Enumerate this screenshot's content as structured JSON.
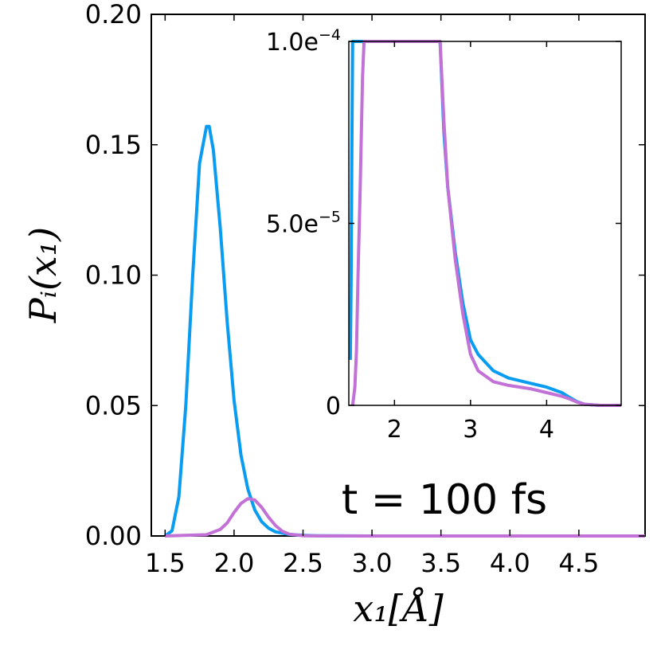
{
  "chart_data": [
    {
      "type": "line",
      "xlabel": "x₁[Å]",
      "ylabel": "Pᵢ(x₁)",
      "xlim": [
        1.4,
        4.98
      ],
      "ylim": [
        0,
        0.2
      ],
      "xticks": [
        1.5,
        2.0,
        2.5,
        3.0,
        3.5,
        4.0,
        4.5
      ],
      "xtick_labels": [
        "1.5",
        "2.0",
        "2.5",
        "3.0",
        "3.5",
        "4.0",
        "4.5"
      ],
      "yticks": [
        0.0,
        0.05,
        0.1,
        0.15,
        0.2
      ],
      "ytick_labels": [
        "0.00",
        "0.05",
        "0.10",
        "0.15",
        "0.20"
      ],
      "annotation": "t = 100 fs",
      "grid": false,
      "series": [
        {
          "color": "#0a9cf0",
          "x": [
            1.5,
            1.55,
            1.6,
            1.65,
            1.7,
            1.75,
            1.8,
            1.82,
            1.85,
            1.9,
            1.95,
            2.0,
            2.05,
            2.1,
            2.15,
            2.2,
            2.25,
            2.3,
            2.4,
            2.5,
            2.6,
            2.8,
            3.0,
            3.5,
            4.0,
            4.98
          ],
          "y": [
            0.0,
            0.002,
            0.015,
            0.05,
            0.1,
            0.143,
            0.157,
            0.157,
            0.148,
            0.118,
            0.082,
            0.052,
            0.031,
            0.018,
            0.01,
            0.0055,
            0.003,
            0.0016,
            0.0006,
            0.0002,
            0.0001,
            2e-05,
            1e-05,
            5e-06,
            3e-06,
            0.0
          ]
        },
        {
          "color": "#c271d6",
          "x": [
            1.5,
            1.8,
            1.9,
            1.95,
            2.0,
            2.05,
            2.1,
            2.15,
            2.2,
            2.25,
            2.3,
            2.35,
            2.4,
            2.5,
            2.6,
            3.0,
            4.98
          ],
          "y": [
            0.0,
            0.0005,
            0.0025,
            0.005,
            0.009,
            0.0125,
            0.0143,
            0.0138,
            0.011,
            0.0072,
            0.004,
            0.0018,
            0.0007,
            0.0001,
            2e-05,
            5e-06,
            0.0
          ]
        }
      ]
    },
    {
      "type": "line",
      "xlim": [
        1.4,
        4.98
      ],
      "ylim": [
        0,
        0.0001
      ],
      "xticks": [
        2,
        3,
        4
      ],
      "xtick_labels": [
        "2",
        "3",
        "4"
      ],
      "yticks": [
        0,
        5e-05,
        0.0001
      ],
      "ytick_labels": [
        {
          "mantissa": "0",
          "exp": ""
        },
        {
          "mantissa": "5.0e",
          "exp": "−5"
        },
        {
          "mantissa": "1.0e",
          "exp": "−4"
        }
      ],
      "grid": false,
      "series": [
        {
          "color": "#0a9cf0",
          "x": [
            1.42,
            1.43,
            1.44,
            1.45,
            1.46,
            2.6,
            2.65,
            2.7,
            2.8,
            2.9,
            3.0,
            3.1,
            3.3,
            3.5,
            3.8,
            4.0,
            4.2,
            4.3,
            4.4,
            4.5,
            4.7,
            4.98
          ],
          "y": [
            1.25e-05,
            3.5e-05,
            7e-05,
            0.0001,
            0.0001,
            0.0001,
            7.5e-05,
            6e-05,
            4.2e-05,
            2.8e-05,
            1.8e-05,
            1.4e-05,
            9.5e-06,
            7.5e-06,
            6e-06,
            5e-06,
            3.5e-06,
            2.2e-06,
            1e-06,
            3e-07,
            0.0,
            0.0
          ]
        },
        {
          "color": "#c271d6",
          "x": [
            1.45,
            1.48,
            1.5,
            1.52,
            1.55,
            1.58,
            1.6,
            2.6,
            2.65,
            2.7,
            2.8,
            2.9,
            3.0,
            3.1,
            3.3,
            3.5,
            3.8,
            4.0,
            4.2,
            4.3,
            4.4,
            4.5,
            4.7,
            4.98
          ],
          "y": [
            0.0,
            5e-06,
            1.5e-05,
            3.5e-05,
            6e-05,
            9e-05,
            0.0001,
            0.0001,
            7.8e-05,
            6e-05,
            4e-05,
            2.5e-05,
            1.4e-05,
            9.5e-06,
            6.5e-06,
            5.5e-06,
            4.5e-06,
            3.5e-06,
            2.5e-06,
            1.8e-06,
            9e-07,
            3e-07,
            0.0,
            0.0
          ]
        }
      ]
    }
  ]
}
